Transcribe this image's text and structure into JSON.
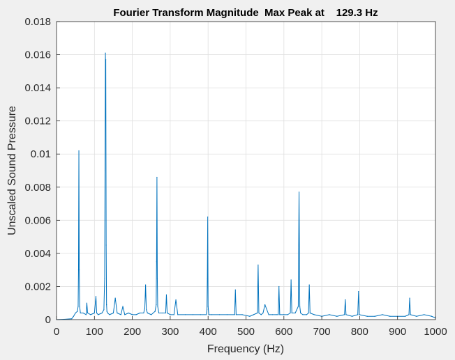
{
  "chart_data": {
    "type": "line",
    "title": "Fourier Transform Magnitude  Max Peak at    129.3 Hz",
    "xlabel": "Frequency (Hz)",
    "ylabel": "Unscaled Sound Pressure",
    "xlim": [
      0,
      1000
    ],
    "ylim": [
      0,
      0.018
    ],
    "xticks": [
      "0",
      "100",
      "200",
      "300",
      "400",
      "500",
      "600",
      "700",
      "800",
      "900",
      "1000"
    ],
    "yticks": [
      "0",
      "0.002",
      "0.004",
      "0.006",
      "0.008",
      "0.01",
      "0.012",
      "0.014",
      "0.016",
      "0.018"
    ],
    "grid": true,
    "line_color": "#0072bd",
    "series": [
      {
        "x": [
          0,
          20,
          40,
          45,
          50,
          55,
          57,
          58,
          59,
          60,
          61,
          63,
          70,
          78,
          80,
          82,
          90,
          100,
          104,
          106,
          110,
          120,
          125,
          127,
          128,
          129,
          129.3,
          130,
          131,
          132,
          133,
          135,
          140,
          150,
          155,
          160,
          170,
          175,
          180,
          190,
          200,
          210,
          220,
          230,
          233,
          235,
          237,
          240,
          250,
          260,
          263,
          264,
          265,
          266,
          267,
          270,
          280,
          288,
          290,
          292,
          300,
          310,
          315,
          320,
          340,
          360,
          380,
          395,
          397,
          398,
          399,
          400,
          402,
          410,
          430,
          450,
          470,
          472,
          474,
          490,
          510,
          520,
          530,
          532,
          534,
          540,
          545,
          550,
          560,
          570,
          580,
          585,
          587,
          589,
          600,
          610,
          617,
          619,
          621,
          630,
          638,
          640,
          642,
          644,
          650,
          660,
          665,
          667,
          669,
          680,
          700,
          720,
          740,
          760,
          762,
          764,
          780,
          795,
          797,
          799,
          820,
          840,
          860,
          880,
          900,
          920,
          930,
          932,
          934,
          950,
          970,
          990,
          1000
        ],
        "y": [
          0,
          2e-05,
          5e-05,
          0.0002,
          0.0004,
          0.0005,
          0.0008,
          0.003,
          0.0102,
          0.003,
          0.0008,
          0.0004,
          0.0004,
          0.0003,
          0.001,
          0.0004,
          0.0003,
          0.0004,
          0.0014,
          0.0004,
          0.0003,
          0.0004,
          0.0006,
          0.0025,
          0.009,
          0.0161,
          0.0155,
          0.0157,
          0.0045,
          0.0009,
          0.0005,
          0.0004,
          0.0003,
          0.0004,
          0.0013,
          0.0004,
          0.0003,
          0.0008,
          0.0003,
          0.0004,
          0.0003,
          0.0003,
          0.0004,
          0.0004,
          0.0007,
          0.0021,
          0.0006,
          0.0004,
          0.0003,
          0.0005,
          0.0009,
          0.0035,
          0.0086,
          0.0025,
          0.0008,
          0.0004,
          0.0004,
          0.0004,
          0.0015,
          0.0004,
          0.0003,
          0.0003,
          0.0012,
          0.0003,
          0.0003,
          0.0003,
          0.0003,
          0.0003,
          0.0006,
          0.0025,
          0.0062,
          0.0008,
          0.0003,
          0.0003,
          0.0003,
          0.0003,
          0.0003,
          0.0018,
          0.0003,
          0.0003,
          0.0002,
          0.0003,
          0.0004,
          0.0033,
          0.0004,
          0.0003,
          0.0004,
          0.0009,
          0.0003,
          0.0003,
          0.0003,
          0.0003,
          0.002,
          0.0003,
          0.0003,
          0.0003,
          0.0004,
          0.0024,
          0.0004,
          0.0004,
          0.0008,
          0.0077,
          0.0008,
          0.0004,
          0.0003,
          0.0003,
          0.0004,
          0.0021,
          0.0004,
          0.0003,
          0.0002,
          0.0003,
          0.0002,
          0.0003,
          0.0012,
          0.0003,
          0.0002,
          0.0003,
          0.0017,
          0.0003,
          0.0002,
          0.0002,
          0.0003,
          0.0002,
          0.0002,
          0.0002,
          0.0003,
          0.0013,
          0.0003,
          0.0002,
          0.0003,
          0.0002,
          0.0001
        ]
      }
    ]
  }
}
